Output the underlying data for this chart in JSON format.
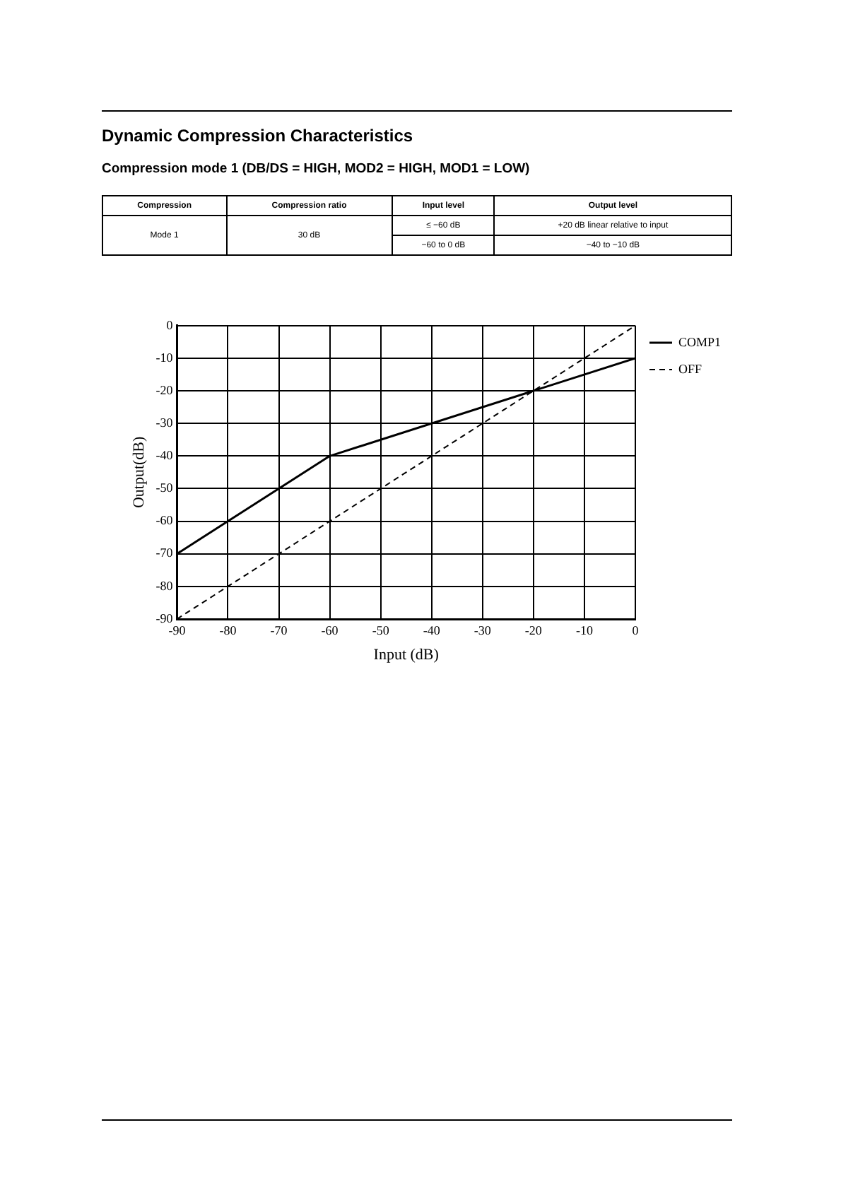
{
  "chart_data": {
    "type": "line",
    "title": "Dynamic Compression Characteristics",
    "subtitle": "Compression mode 1 (DB/DS = HIGH, MOD2 = HIGH, MOD1 = LOW)",
    "xlabel": "Input (dB)",
    "ylabel": "Output(dB)",
    "annotations": [
      "Compression",
      "Compression ratio",
      "Input level",
      "Output level",
      "Mode 1",
      "30 dB",
      "≤ −60 dB",
      "+20 dB linear relative to input",
      "−60 to 0 dB",
      "−40 to −10 dB"
    ],
    "series": [
      {
        "name": "COMP1",
        "color": "#000000",
        "line_style": "solid",
        "x": [
          -90,
          -60,
          0
        ],
        "values": [
          -70,
          -40,
          -10
        ]
      },
      {
        "name": "OFF",
        "color": "#000000",
        "line_style": "dashed",
        "x": [
          -90,
          0
        ],
        "values": [
          -90,
          0
        ]
      }
    ],
    "xlim": [
      -90,
      0
    ],
    "xticks": [
      -90,
      -80,
      -70,
      -60,
      -50,
      -40,
      -30,
      -20,
      -10,
      0
    ],
    "ylim": [
      -90,
      0
    ],
    "yticks": [
      -90,
      -80,
      -70,
      -60,
      -50,
      -40,
      -30,
      -20,
      -10,
      0
    ],
    "grid": true,
    "legend": "top right",
    "marker": "none"
  }
}
